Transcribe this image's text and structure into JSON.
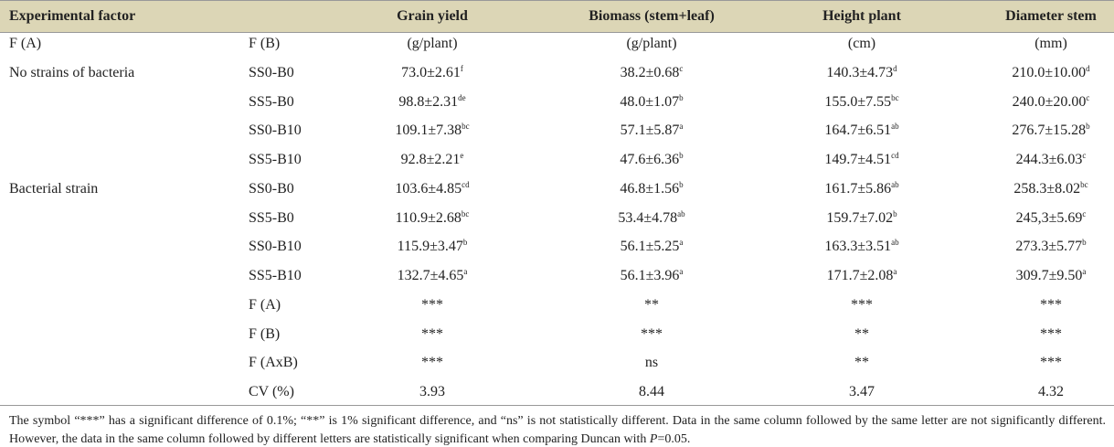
{
  "table": {
    "header": [
      "Experimental factor",
      "Grain yield",
      "Biomass (stem+leaf)",
      "Height plant",
      "Diameter stem"
    ],
    "rows": [
      {
        "group": "F (A)",
        "label": "F (B)",
        "cells": [
          {
            "value": "(g/plant)"
          },
          {
            "value": "(g/plant)"
          },
          {
            "value": "(cm)"
          },
          {
            "value": "(mm)"
          }
        ]
      },
      {
        "group": "No strains of bacteria",
        "label": "SS0-B0",
        "cells": [
          {
            "value": "73.0±2.61",
            "sup": "f"
          },
          {
            "value": "38.2±0.68",
            "sup": "c"
          },
          {
            "value": "140.3±4.73",
            "sup": "d"
          },
          {
            "value": "210.0±10.00",
            "sup": "d"
          }
        ]
      },
      {
        "label": "SS5-B0",
        "cells": [
          {
            "value": "98.8±2.31",
            "sup": "de"
          },
          {
            "value": "48.0±1.07",
            "sup": "b"
          },
          {
            "value": "155.0±7.55",
            "sup": "bc"
          },
          {
            "value": "240.0±20.00",
            "sup": "c"
          }
        ]
      },
      {
        "label": "SS0-B10",
        "cells": [
          {
            "value": "109.1±7.38",
            "sup": "bc"
          },
          {
            "value": "57.1±5.87",
            "sup": "a"
          },
          {
            "value": "164.7±6.51",
            "sup": "ab"
          },
          {
            "value": "276.7±15.28",
            "sup": "b"
          }
        ]
      },
      {
        "label": "SS5-B10",
        "cells": [
          {
            "value": "92.8±2.21",
            "sup": "e"
          },
          {
            "value": "47.6±6.36",
            "sup": "b"
          },
          {
            "value": "149.7±4.51",
            "sup": "cd"
          },
          {
            "value": "244.3±6.03",
            "sup": "c"
          }
        ]
      },
      {
        "group": "Bacterial strain",
        "label": "SS0-B0",
        "cells": [
          {
            "value": "103.6±4.85",
            "sup": "cd"
          },
          {
            "value": "46.8±1.56",
            "sup": "b"
          },
          {
            "value": "161.7±5.86",
            "sup": "ab"
          },
          {
            "value": "258.3±8.02",
            "sup": "bc"
          }
        ]
      },
      {
        "label": "SS5-B0",
        "cells": [
          {
            "value": "110.9±2.68",
            "sup": "bc"
          },
          {
            "value": "53.4±4.78",
            "sup": "ab"
          },
          {
            "value": "159.7±7.02",
            "sup": "b"
          },
          {
            "value": "245,3±5.69",
            "sup": "c"
          }
        ]
      },
      {
        "label": "SS0-B10",
        "cells": [
          {
            "value": "115.9±3.47",
            "sup": "b"
          },
          {
            "value": "56.1±5.25",
            "sup": "a"
          },
          {
            "value": "163.3±3.51",
            "sup": "ab"
          },
          {
            "value": "273.3±5.77",
            "sup": "b"
          }
        ]
      },
      {
        "label": "SS5-B10",
        "cells": [
          {
            "value": "132.7±4.65",
            "sup": "a"
          },
          {
            "value": "56.1±3.96",
            "sup": "a"
          },
          {
            "value": "171.7±2.08",
            "sup": "a"
          },
          {
            "value": "309.7±9.50",
            "sup": "a"
          }
        ]
      },
      {
        "label": "F (A)",
        "cells": [
          {
            "value": "***"
          },
          {
            "value": "**"
          },
          {
            "value": "***"
          },
          {
            "value": "***"
          }
        ]
      },
      {
        "label": "F (B)",
        "cells": [
          {
            "value": "***"
          },
          {
            "value": "***"
          },
          {
            "value": "**"
          },
          {
            "value": "***"
          }
        ]
      },
      {
        "label": "F (AxB)",
        "cells": [
          {
            "value": "***"
          },
          {
            "value": "ns"
          },
          {
            "value": "**"
          },
          {
            "value": "***"
          }
        ]
      },
      {
        "label": "CV (%)",
        "cells": [
          {
            "value": "3.93"
          },
          {
            "value": "8.44"
          },
          {
            "value": "3.47"
          },
          {
            "value": "4.32"
          }
        ]
      }
    ]
  },
  "footnote": [
    "The symbol “***” has a significant difference of 0.1%; “**” is 1% significant difference, and “ns” is not statistically different. Data in the same column followed by the same letter are not significantly different. However, the data in the same column followed by different letters are statistically significant when comparing Duncan with ",
    "P",
    "=0.05."
  ]
}
